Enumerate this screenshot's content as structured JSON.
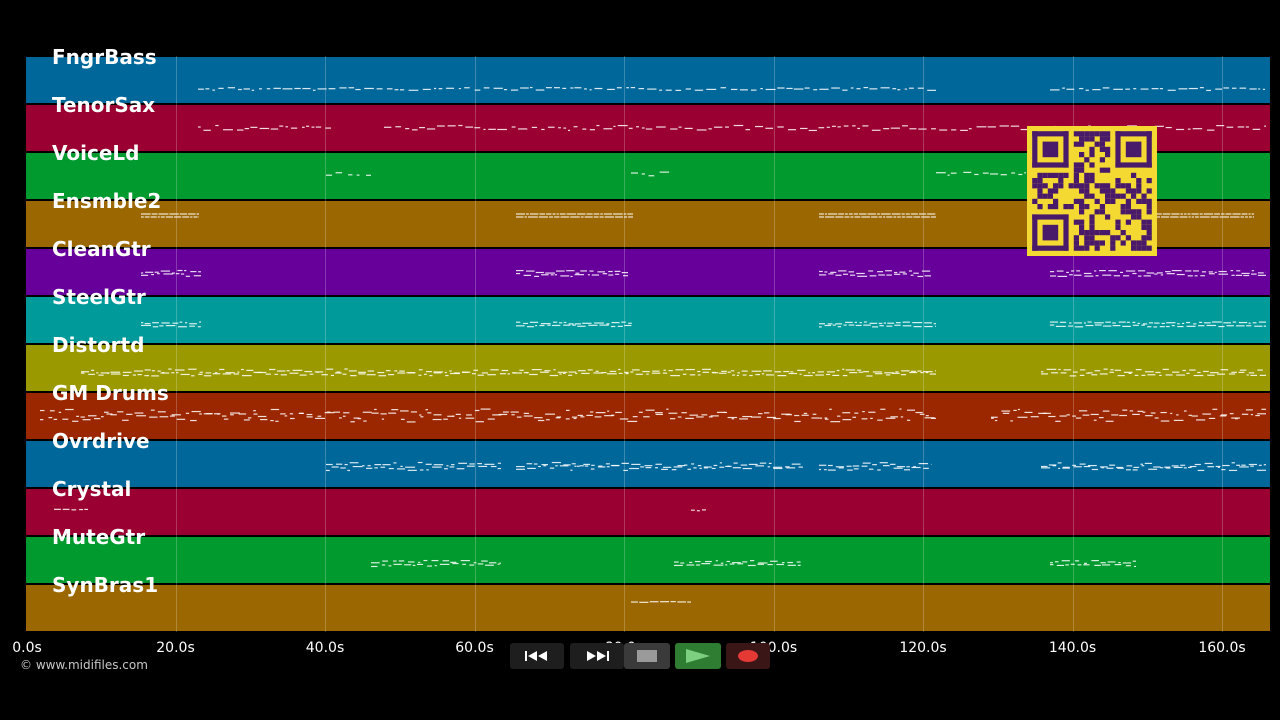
{
  "tracks": [
    {
      "name": "FngrBass",
      "color": "#00679a"
    },
    {
      "name": "TenorSax",
      "color": "#9a0032"
    },
    {
      "name": "VoiceLd",
      "color": "#009a2e"
    },
    {
      "name": "Ensmble2",
      "color": "#9a6700"
    },
    {
      "name": "CleanGtr",
      "color": "#67009a"
    },
    {
      "name": "SteelGtr",
      "color": "#009a9a"
    },
    {
      "name": "Distortd",
      "color": "#9a9a00"
    },
    {
      "name": "GM Drums",
      "color": "#9a2700"
    },
    {
      "name": "Ovrdrive",
      "color": "#00679a"
    },
    {
      "name": "Crystal",
      "color": "#9a0032"
    },
    {
      "name": "MuteGtr",
      "color": "#009a2e"
    },
    {
      "name": "SynBras1",
      "color": "#9a6700"
    }
  ],
  "axis": {
    "ticks": [
      "0.0s",
      "20.0s",
      "40.0s",
      "60.0s",
      "80.0s",
      "100.0s",
      "120.0s",
      "140.0s",
      "160.0s"
    ]
  },
  "copyright": "© www.midifiles.com",
  "transport": {
    "rewind_icon": "rewind-icon",
    "fast_forward_icon": "fast-forward-icon",
    "stop_icon": "stop-icon",
    "play_icon": "play-icon",
    "record_icon": "record-icon",
    "play_color": "#2e7d32",
    "record_color": "#e53935"
  },
  "qr_icon": "qr-code-icon"
}
